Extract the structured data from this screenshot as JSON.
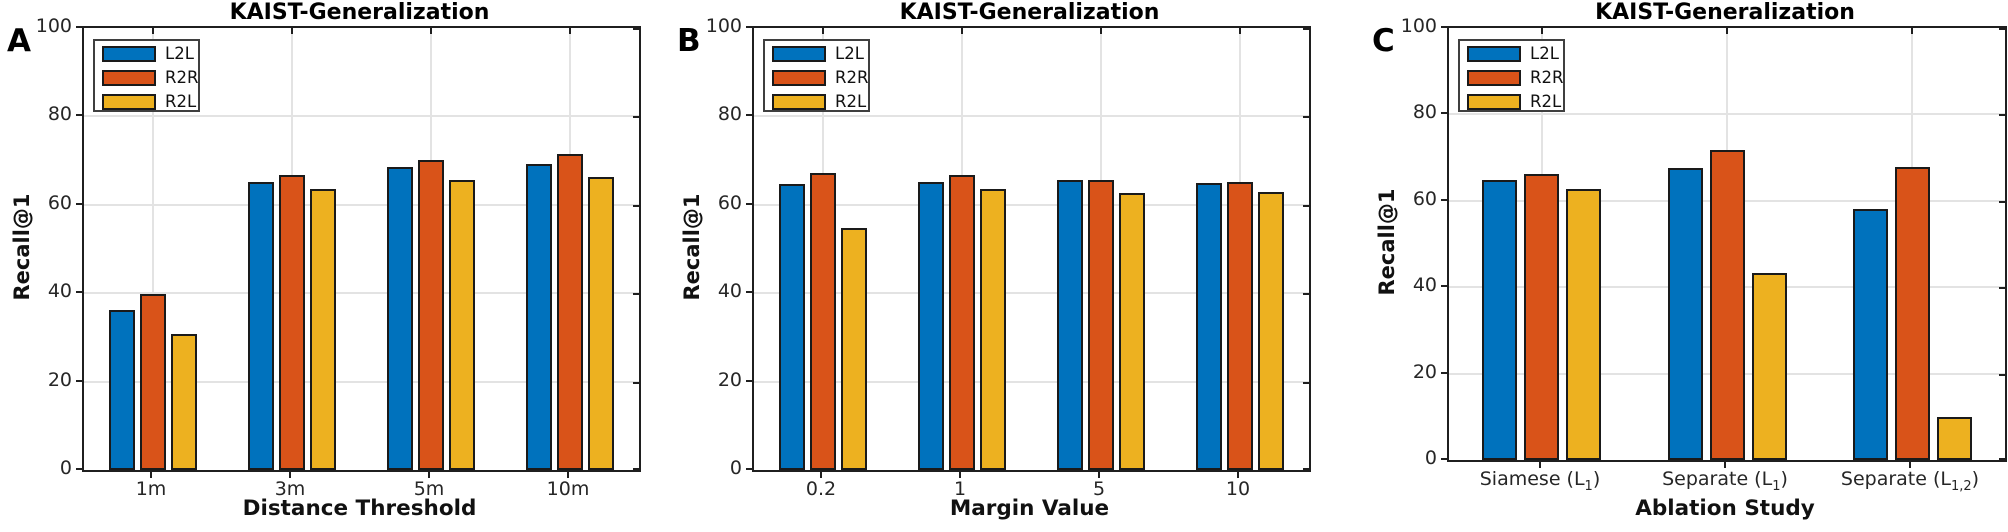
{
  "figure_title": "KAIST-Generalization",
  "ylabel": "Recall@1",
  "colors": {
    "L2L": "#0072BD",
    "R2R": "#D95319",
    "R2L": "#EDB120",
    "bar_edge": "#1A1A1A",
    "axis": "#1F1F1F",
    "grid": "#E3E3E3",
    "tick_label": "#262626",
    "background": "#FFFFFF"
  },
  "legend": {
    "entries": [
      "L2L",
      "R2R",
      "R2L"
    ],
    "position": "top-left-inside"
  },
  "chart_data": [
    {
      "type": "bar",
      "panel_letter": "A",
      "title": "KAIST-Generalization",
      "xlabel": "Distance Threshold",
      "ylabel": "Recall@1",
      "ylim": [
        0,
        100
      ],
      "yticks": [
        0,
        20,
        40,
        60,
        80,
        100
      ],
      "grid": true,
      "legend_position": "top-left",
      "categories": [
        "1m",
        "3m",
        "5m",
        "10m"
      ],
      "series": [
        {
          "name": "L2L",
          "color": "#0072BD",
          "values": [
            36.2,
            65.2,
            68.5,
            69.2
          ]
        },
        {
          "name": "R2R",
          "color": "#D95319",
          "values": [
            39.8,
            66.7,
            70.1,
            71.4
          ]
        },
        {
          "name": "R2L",
          "color": "#EDB120",
          "values": [
            30.8,
            63.5,
            65.7,
            66.2
          ]
        }
      ]
    },
    {
      "type": "bar",
      "panel_letter": "B",
      "title": "KAIST-Generalization",
      "xlabel": "Margin Value",
      "ylabel": "Recall@1",
      "ylim": [
        0,
        100
      ],
      "yticks": [
        0,
        20,
        40,
        60,
        80,
        100
      ],
      "grid": true,
      "legend_position": "top-left",
      "categories": [
        "0.2",
        "1",
        "5",
        "10"
      ],
      "series": [
        {
          "name": "L2L",
          "color": "#0072BD",
          "values": [
            64.7,
            65.1,
            65.5,
            64.9
          ]
        },
        {
          "name": "R2R",
          "color": "#D95319",
          "values": [
            67.3,
            66.7,
            65.7,
            65.1
          ]
        },
        {
          "name": "R2L",
          "color": "#EDB120",
          "values": [
            54.8,
            63.5,
            62.6,
            62.8
          ]
        }
      ]
    },
    {
      "type": "bar",
      "panel_letter": "C",
      "title": "KAIST-Generalization",
      "xlabel": "Ablation Study",
      "ylabel": "Recall@1",
      "ylim": [
        0,
        100
      ],
      "yticks": [
        0,
        20,
        40,
        60,
        80,
        100
      ],
      "grid": true,
      "legend_position": "top-left",
      "categories": [
        "Siamese (L1)",
        "Separate (L1)",
        "Separate (L1,2)"
      ],
      "categories_rich": [
        [
          {
            "t": "Siamese (L"
          },
          {
            "t": "1",
            "sub": true
          },
          {
            "t": ")"
          }
        ],
        [
          {
            "t": "Separate (L"
          },
          {
            "t": "1",
            "sub": true
          },
          {
            "t": ")"
          }
        ],
        [
          {
            "t": "Separate (L"
          },
          {
            "t": "1,2",
            "sub": true
          },
          {
            "t": ")"
          }
        ]
      ],
      "series": [
        {
          "name": "L2L",
          "color": "#0072BD",
          "values": [
            64.9,
            67.6,
            58.1
          ]
        },
        {
          "name": "R2R",
          "color": "#D95319",
          "values": [
            66.3,
            71.8,
            67.9
          ]
        },
        {
          "name": "R2L",
          "color": "#EDB120",
          "values": [
            62.8,
            43.3,
            10.0
          ]
        }
      ]
    }
  ]
}
